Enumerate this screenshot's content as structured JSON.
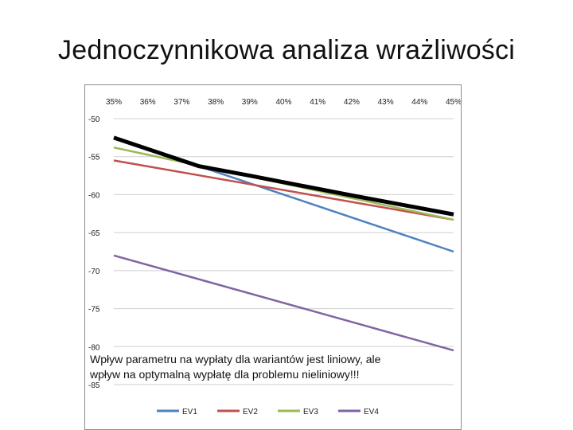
{
  "slide": {
    "title": "Jednoczynnikowa analiza wrażliwości",
    "caption_line1": "Wpływ parametru na wypłaty dla wariantów jest liniowy, ale",
    "caption_line2": "wpływ na optymalną wypłatę dla problemu nieliniowy!!!"
  },
  "chart_data": {
    "type": "line",
    "title": "",
    "xlabel": "",
    "ylabel": "",
    "x_tick_labels": [
      "35%",
      "36%",
      "37%",
      "38%",
      "39%",
      "40%",
      "41%",
      "42%",
      "43%",
      "44%",
      "45%"
    ],
    "x": [
      0.35,
      0.45
    ],
    "xlim": [
      0.35,
      0.45
    ],
    "ylim": [
      -85,
      -50
    ],
    "y_ticks": [
      -50,
      -55,
      -60,
      -65,
      -70,
      -75,
      -80,
      -85
    ],
    "x_axis_position": "top",
    "grid": "horizontal",
    "legend_position": "bottom",
    "series": [
      {
        "name": "EV1",
        "color": "#4F81BD",
        "values": [
          -52.5,
          -67.5
        ]
      },
      {
        "name": "EV2",
        "color": "#C0504D",
        "values": [
          -55.5,
          -63.3
        ]
      },
      {
        "name": "EV3",
        "color": "#9BBB59",
        "values": [
          -53.8,
          -63.3
        ]
      },
      {
        "name": "EV4",
        "color": "#8064A2",
        "values": [
          -68.0,
          -80.5
        ]
      }
    ],
    "optimum": {
      "color": "#000000",
      "x": [
        0.35,
        0.375,
        0.39,
        0.42,
        0.45
      ],
      "values": [
        -52.5,
        -56.25,
        -57.5,
        -60.1,
        -62.6
      ]
    }
  }
}
